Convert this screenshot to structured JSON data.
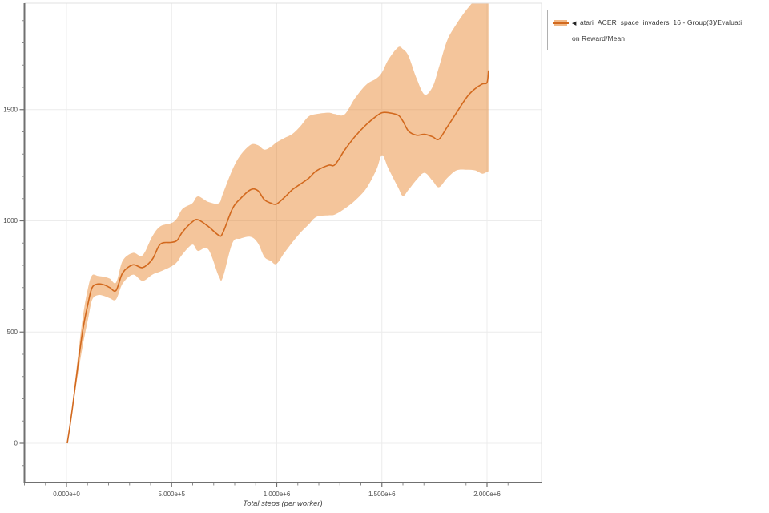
{
  "page": {
    "background": "#ffffff"
  },
  "legend": {
    "marker": "◀",
    "label_lines": [
      "atari_ACER_space_invaders_16 - Group(3)/Evaluati",
      "on Reward/Mean"
    ],
    "full_label": "atari_ACER_space_invaders_16 - Group(3)/Evaluation Reward/Mean"
  },
  "colors": {
    "line": "#d2691e",
    "band": "rgba(230,126,34,0.45)",
    "legend_band": "rgba(230,126,34,0.55)",
    "grid": "#ececec",
    "panel_border": "#e0e0e0",
    "axis": "#707070",
    "minor_tick": "#8a8a8a",
    "tick_label": "#4a4a4a"
  },
  "chart_data": {
    "type": "line",
    "title": "",
    "xlabel": "Total steps (per worker)",
    "ylabel": "",
    "grid": true,
    "legend_position": "top-right-outside",
    "xlim": [
      -202000,
      2259000
    ],
    "ylim": [
      -177,
      1978
    ],
    "x_ticks": [
      {
        "v": 0,
        "label": "0.000e+0"
      },
      {
        "v": 500000,
        "label": "5.000e+5"
      },
      {
        "v": 1000000,
        "label": "1.000e+6"
      },
      {
        "v": 1500000,
        "label": "1.500e+6"
      },
      {
        "v": 2000000,
        "label": "2.000e+6"
      }
    ],
    "y_ticks": [
      {
        "v": 0,
        "label": "0"
      },
      {
        "v": 500,
        "label": "500"
      },
      {
        "v": 1000,
        "label": "1000"
      },
      {
        "v": 1500,
        "label": "1500"
      }
    ],
    "x_minor": {
      "from": -200000,
      "to": 2200000,
      "step": 100000
    },
    "y_minor": {
      "from": -100,
      "to": 1900,
      "step": 100
    },
    "series": [
      {
        "name": "atari_ACER_space_invaders_16 - Group(3)/Evaluation Reward/Mean",
        "columns": [
          "x_steps",
          "mean",
          "band_low",
          "band_high"
        ],
        "points": [
          [
            4000,
            0,
            0,
            0
          ],
          [
            27000,
            150,
            140,
            163
          ],
          [
            46000,
            290,
            262,
            320
          ],
          [
            76000,
            500,
            432,
            558
          ],
          [
            103000,
            630,
            560,
            700
          ],
          [
            122000,
            700,
            645,
            755
          ],
          [
            149000,
            716,
            666,
            752
          ],
          [
            179000,
            712,
            662,
            748
          ],
          [
            206000,
            700,
            652,
            740
          ],
          [
            236000,
            687,
            647,
            723
          ],
          [
            267000,
            766,
            718,
            820
          ],
          [
            316000,
            802,
            758,
            856
          ],
          [
            362000,
            790,
            730,
            845
          ],
          [
            408000,
            827,
            758,
            930
          ],
          [
            446000,
            895,
            772,
            975
          ],
          [
            499000,
            903,
            795,
            990
          ],
          [
            526000,
            912,
            815,
            1012
          ],
          [
            552000,
            950,
            850,
            1054
          ],
          [
            598000,
            995,
            893,
            1079
          ],
          [
            625000,
            1005,
            865,
            1110
          ],
          [
            674000,
            975,
            872,
            1085
          ],
          [
            724000,
            935,
            752,
            1079
          ],
          [
            743000,
            945,
            744,
            1120
          ],
          [
            789000,
            1054,
            900,
            1230
          ],
          [
            827000,
            1100,
            920,
            1295
          ],
          [
            876000,
            1140,
            928,
            1342
          ],
          [
            910000,
            1136,
            900,
            1340
          ],
          [
            941000,
            1095,
            838,
            1320
          ],
          [
            971000,
            1080,
            820,
            1332
          ],
          [
            998000,
            1075,
            806,
            1352
          ],
          [
            1036000,
            1105,
            856,
            1372
          ],
          [
            1074000,
            1140,
            903,
            1390
          ],
          [
            1112000,
            1165,
            946,
            1425
          ],
          [
            1150000,
            1190,
            982,
            1468
          ],
          [
            1189000,
            1225,
            1018,
            1480
          ],
          [
            1246000,
            1250,
            1025,
            1486
          ],
          [
            1276000,
            1252,
            1028,
            1480
          ],
          [
            1322000,
            1317,
            1054,
            1478
          ],
          [
            1371000,
            1378,
            1090,
            1550
          ],
          [
            1425000,
            1432,
            1145,
            1612
          ],
          [
            1474000,
            1471,
            1230,
            1640
          ],
          [
            1501000,
            1486,
            1295,
            1668
          ],
          [
            1531000,
            1486,
            1235,
            1725
          ],
          [
            1577000,
            1475,
            1150,
            1780
          ],
          [
            1600000,
            1448,
            1112,
            1772
          ],
          [
            1627000,
            1403,
            1140,
            1740
          ],
          [
            1665000,
            1385,
            1185,
            1640
          ],
          [
            1703000,
            1389,
            1216,
            1568
          ],
          [
            1741000,
            1378,
            1180,
            1602
          ],
          [
            1771000,
            1367,
            1151,
            1690
          ],
          [
            1810000,
            1421,
            1192,
            1810
          ],
          [
            1855000,
            1486,
            1227,
            1885
          ],
          [
            1905000,
            1558,
            1230,
            1952
          ],
          [
            1943000,
            1594,
            1227,
            1990
          ],
          [
            1977000,
            1615,
            1212,
            2000
          ],
          [
            2000000,
            1622,
            1220,
            2005
          ],
          [
            2007000,
            1676,
            1223,
            2005
          ]
        ]
      }
    ]
  }
}
